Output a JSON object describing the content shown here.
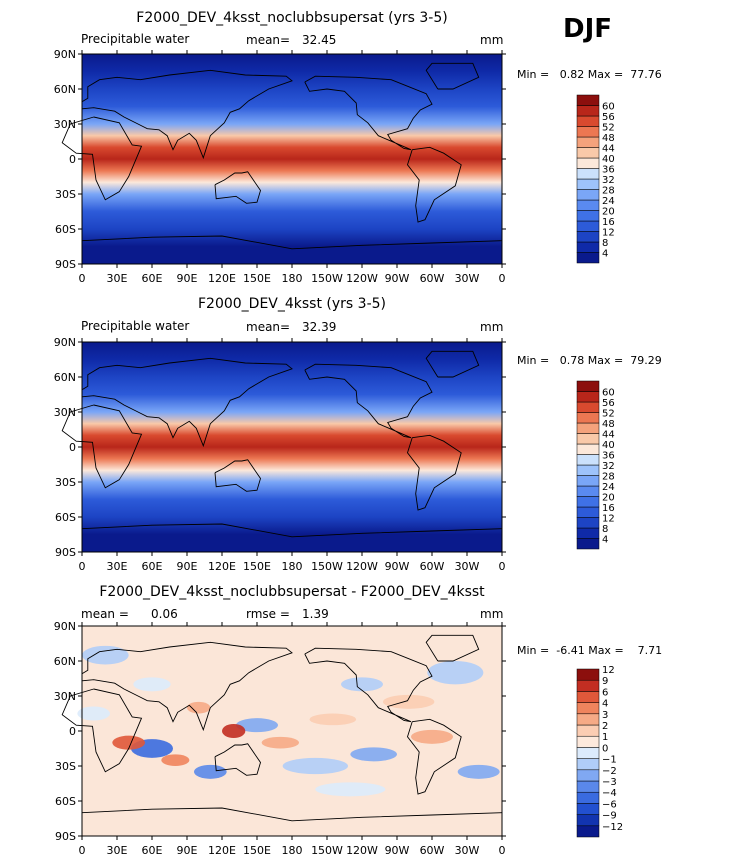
{
  "season": "DJF",
  "panels": [
    {
      "title": "F2000_DEV_4ksst_noclubbsupersat (yrs 3-5)",
      "variable": "Precipitable water",
      "mean_label": "mean=",
      "mean_value": "32.45",
      "units": "mm",
      "min_label": "Min =",
      "min_value": "0.82",
      "max_label": "Max =",
      "max_value": "77.76"
    },
    {
      "title": "F2000_DEV_4ksst (yrs 3-5)",
      "variable": "Precipitable water",
      "mean_label": "mean=",
      "mean_value": "32.39",
      "units": "mm",
      "min_label": "Min =",
      "min_value": "0.78",
      "max_label": "Max =",
      "max_value": "79.29"
    },
    {
      "title": "F2000_DEV_4ksst_noclubbsupersat - F2000_DEV_4ksst",
      "variable": "",
      "mean_label": "mean =",
      "mean_value": "0.06",
      "rmse_label": "rmse =",
      "rmse_value": "1.39",
      "units": "mm",
      "min_label": "Min =",
      "min_value": "-6.41",
      "max_label": "Max =",
      "max_value": "7.71"
    }
  ],
  "chart_data": [
    {
      "type": "heatmap",
      "title": "F2000_DEV_4ksst_noclubbsupersat (yrs 3-5)",
      "subtitle": "Precipitable water",
      "units": "mm",
      "mean": 32.45,
      "min": 0.82,
      "max": 77.76,
      "x_tick_labels": [
        "0",
        "30E",
        "60E",
        "90E",
        "120E",
        "150E",
        "180",
        "150W",
        "120W",
        "90W",
        "60W",
        "30W",
        "0"
      ],
      "y_tick_labels": [
        "90N",
        "60N",
        "30N",
        "0",
        "30S",
        "60S",
        "90S"
      ],
      "xlim": [
        0,
        360
      ],
      "ylim": [
        -90,
        90
      ],
      "colorbar_levels": [
        4,
        8,
        12,
        16,
        20,
        24,
        28,
        32,
        36,
        40,
        44,
        48,
        52,
        56,
        60
      ],
      "colorbar_colors": [
        "#0a1a8c",
        "#0f2aa8",
        "#1d44c4",
        "#2d5bd9",
        "#3f71e6",
        "#5a8af0",
        "#7aa6f7",
        "#9ec3fb",
        "#cbe1fc",
        "#fce8da",
        "#f9c9a9",
        "#f4a27c",
        "#ec7752",
        "#d94a2f",
        "#b8261a",
        "#8c0f0d"
      ],
      "zonal_profile": {
        "lat": [
          -90,
          -75,
          -60,
          -45,
          -30,
          -20,
          -10,
          0,
          10,
          20,
          30,
          45,
          60,
          75,
          90
        ],
        "values": [
          2,
          4,
          9,
          16,
          28,
          40,
          52,
          57,
          53,
          42,
          28,
          16,
          9,
          5,
          3
        ]
      }
    },
    {
      "type": "heatmap",
      "title": "F2000_DEV_4ksst (yrs 3-5)",
      "subtitle": "Precipitable water",
      "units": "mm",
      "mean": 32.39,
      "min": 0.78,
      "max": 79.29,
      "x_tick_labels": [
        "0",
        "30E",
        "60E",
        "90E",
        "120E",
        "150E",
        "180",
        "150W",
        "120W",
        "90W",
        "60W",
        "30W",
        "0"
      ],
      "y_tick_labels": [
        "90N",
        "60N",
        "30N",
        "0",
        "30S",
        "60S",
        "90S"
      ],
      "xlim": [
        0,
        360
      ],
      "ylim": [
        -90,
        90
      ],
      "colorbar_levels": [
        4,
        8,
        12,
        16,
        20,
        24,
        28,
        32,
        36,
        40,
        44,
        48,
        52,
        56,
        60
      ],
      "colorbar_colors": [
        "#0a1a8c",
        "#0f2aa8",
        "#1d44c4",
        "#2d5bd9",
        "#3f71e6",
        "#5a8af0",
        "#7aa6f7",
        "#9ec3fb",
        "#cbe1fc",
        "#fce8da",
        "#f9c9a9",
        "#f4a27c",
        "#ec7752",
        "#d94a2f",
        "#b8261a",
        "#8c0f0d"
      ],
      "zonal_profile": {
        "lat": [
          -90,
          -75,
          -60,
          -45,
          -30,
          -20,
          -10,
          0,
          10,
          20,
          30,
          45,
          60,
          75,
          90
        ],
        "values": [
          2,
          4,
          9,
          16,
          28,
          40,
          52,
          57,
          53,
          42,
          28,
          16,
          9,
          5,
          3
        ]
      }
    },
    {
      "type": "heatmap",
      "title": "F2000_DEV_4ksst_noclubbsupersat - F2000_DEV_4ksst",
      "units": "mm",
      "mean": 0.06,
      "rmse": 1.39,
      "min": -6.41,
      "max": 7.71,
      "x_tick_labels": [
        "0",
        "30E",
        "60E",
        "90E",
        "120E",
        "150E",
        "180",
        "150W",
        "120W",
        "90W",
        "60W",
        "30W",
        "0"
      ],
      "y_tick_labels": [
        "90N",
        "60N",
        "30N",
        "0",
        "30S",
        "60S",
        "90S"
      ],
      "xlim": [
        0,
        360
      ],
      "ylim": [
        -90,
        90
      ],
      "colorbar_levels": [
        -12,
        -9,
        -6,
        -4,
        -3,
        -2,
        -1,
        0,
        1,
        2,
        3,
        4,
        6,
        9,
        12
      ],
      "colorbar_tick_labels": [
        "−12",
        "−9",
        "−6",
        "−4",
        "−3",
        "−2",
        "−1",
        "0",
        "1",
        "2",
        "3",
        "4",
        "6",
        "9",
        "12"
      ],
      "colorbar_colors": [
        "#0a1a8c",
        "#1234b0",
        "#2250d0",
        "#3a6be0",
        "#5a88ea",
        "#80a8f2",
        "#b0cdf8",
        "#dcebfc",
        "#fde9dc",
        "#fbcdb3",
        "#f6aa86",
        "#ef845d",
        "#e0583a",
        "#c22e22",
        "#8c0f0d"
      ]
    }
  ]
}
